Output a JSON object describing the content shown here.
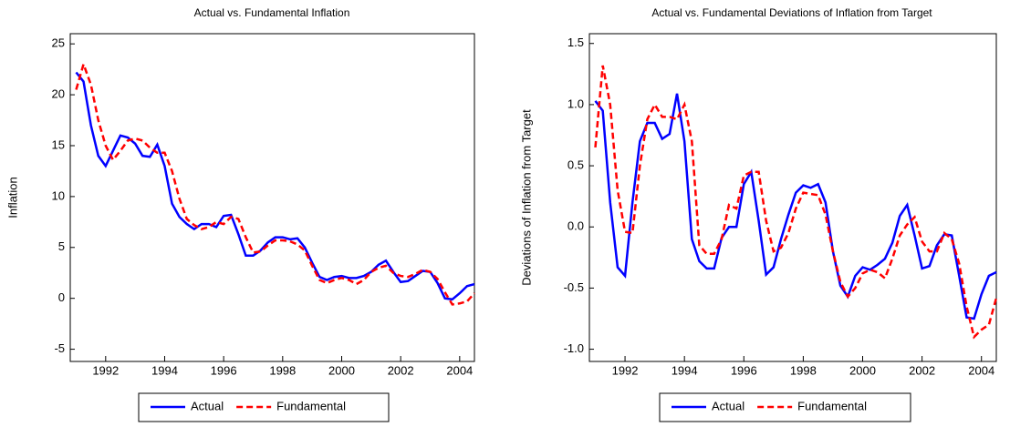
{
  "chart_data": [
    {
      "type": "line",
      "title": "Actual vs. Fundamental Inflation",
      "y_label": "Inflation",
      "x": [
        1991,
        1991.25,
        1991.5,
        1991.75,
        1992,
        1992.25,
        1992.5,
        1992.75,
        1993,
        1993.25,
        1993.5,
        1993.75,
        1994,
        1994.25,
        1994.5,
        1994.75,
        1995,
        1995.25,
        1995.5,
        1995.75,
        1996,
        1996.25,
        1996.5,
        1996.75,
        1997,
        1997.25,
        1997.5,
        1997.75,
        1998,
        1998.25,
        1998.5,
        1998.75,
        1999,
        1999.25,
        1999.5,
        1999.75,
        2000,
        2000.25,
        2000.5,
        2000.75,
        2001,
        2001.25,
        2001.5,
        2001.75,
        2002,
        2002.25,
        2002.5,
        2002.75,
        2003,
        2003.25,
        2003.5,
        2003.75,
        2004,
        2004.25,
        2004.5
      ],
      "series": [
        {
          "name": "Actual",
          "color": "#0000ff",
          "line_style": "solid",
          "values": [
            22.2,
            21.3,
            17,
            14,
            13,
            14.5,
            16,
            15.8,
            15.2,
            14,
            13.9,
            15.1,
            13,
            9.3,
            8,
            7.3,
            6.8,
            7.3,
            7.3,
            7,
            8.1,
            8.2,
            6.3,
            4.2,
            4.2,
            4.7,
            5.5,
            6,
            6,
            5.8,
            5.9,
            5,
            3.5,
            2.1,
            1.8,
            2.1,
            2.2,
            2,
            2,
            2.2,
            2.6,
            3.3,
            3.7,
            2.6,
            1.6,
            1.7,
            2.2,
            2.7,
            2.6,
            1.5,
            0,
            -0.1,
            0.5,
            1.2,
            1.4
          ]
        },
        {
          "name": "Fundamental",
          "color": "#ff0000",
          "line_style": "dashed",
          "values": [
            20.5,
            23,
            21,
            17.5,
            15,
            13.6,
            14.5,
            15.5,
            15.7,
            15.5,
            14.8,
            14.3,
            14.3,
            12.5,
            9.8,
            7.8,
            7.2,
            6.8,
            7,
            7.5,
            7.3,
            8,
            7.8,
            6,
            4.5,
            4.6,
            5.2,
            5.7,
            5.7,
            5.6,
            5.3,
            4.7,
            3.2,
            1.8,
            1.5,
            1.8,
            2,
            1.8,
            1.4,
            1.8,
            2.6,
            3,
            3.2,
            2.5,
            2.2,
            2.1,
            2.4,
            2.8,
            2.6,
            1.9,
            0.6,
            -0.6,
            -0.5,
            -0.3,
            0.5
          ]
        }
      ],
      "xlim": [
        1990.8,
        2004.5
      ],
      "xticks": [
        1992,
        1994,
        1996,
        1998,
        2000,
        2002,
        2004
      ],
      "ylim": [
        -6.2,
        26
      ],
      "yticks": [
        -5,
        0,
        5,
        10,
        15,
        20,
        25
      ]
    },
    {
      "type": "line",
      "title": "Actual vs. Fundamental Deviations of Inflation from Target",
      "y_label": "Deviations of Inflation from Target",
      "x": [
        1991,
        1991.25,
        1991.5,
        1991.75,
        1992,
        1992.25,
        1992.5,
        1992.75,
        1993,
        1993.25,
        1993.5,
        1993.75,
        1994,
        1994.25,
        1994.5,
        1994.75,
        1995,
        1995.25,
        1995.5,
        1995.75,
        1996,
        1996.25,
        1996.5,
        1996.75,
        1997,
        1997.25,
        1997.5,
        1997.75,
        1998,
        1998.25,
        1998.5,
        1998.75,
        1999,
        1999.25,
        1999.5,
        1999.75,
        2000,
        2000.25,
        2000.5,
        2000.75,
        2001,
        2001.25,
        2001.5,
        2001.75,
        2002,
        2002.25,
        2002.5,
        2002.75,
        2003,
        2003.25,
        2003.5,
        2003.75,
        2004,
        2004.25,
        2004.5
      ],
      "series": [
        {
          "name": "Actual",
          "color": "#0000ff",
          "line_style": "solid",
          "values": [
            1.03,
            0.95,
            0.2,
            -0.33,
            -0.4,
            0.2,
            0.7,
            0.85,
            0.85,
            0.72,
            0.76,
            1.09,
            0.7,
            -0.1,
            -0.28,
            -0.34,
            -0.34,
            -0.09,
            0,
            0,
            0.35,
            0.45,
            0.05,
            -0.39,
            -0.33,
            -0.1,
            0.1,
            0.28,
            0.34,
            0.32,
            0.35,
            0.2,
            -0.2,
            -0.48,
            -0.57,
            -0.4,
            -0.33,
            -0.35,
            -0.31,
            -0.26,
            -0.13,
            0.09,
            0.18,
            -0.07,
            -0.34,
            -0.32,
            -0.15,
            -0.06,
            -0.07,
            -0.4,
            -0.74,
            -0.75,
            -0.55,
            -0.4,
            -0.37
          ]
        },
        {
          "name": "Fundamental",
          "color": "#ff0000",
          "line_style": "dashed",
          "values": [
            0.65,
            1.32,
            1,
            0.3,
            -0.04,
            -0.05,
            0.5,
            0.88,
            1,
            0.9,
            0.9,
            0.88,
            1,
            0.7,
            -0.15,
            -0.22,
            -0.22,
            -0.1,
            0.18,
            0.15,
            0.42,
            0.45,
            0.45,
            0.05,
            -0.2,
            -0.17,
            -0.05,
            0.15,
            0.28,
            0.27,
            0.26,
            0.1,
            -0.2,
            -0.45,
            -0.57,
            -0.5,
            -0.38,
            -0.35,
            -0.37,
            -0.42,
            -0.26,
            -0.07,
            0.02,
            0.08,
            -0.12,
            -0.2,
            -0.2,
            -0.05,
            -0.1,
            -0.3,
            -0.65,
            -0.9,
            -0.84,
            -0.8,
            -0.58
          ]
        }
      ],
      "xlim": [
        1990.8,
        2004.5
      ],
      "xticks": [
        1992,
        1994,
        1996,
        1998,
        2000,
        2002,
        2004
      ],
      "ylim": [
        -1.1,
        1.58
      ],
      "yticks": [
        {
          "value": -1,
          "label": "-1.0"
        },
        {
          "value": -0.5,
          "label": "-0.5"
        },
        {
          "value": 0,
          "label": "0.0"
        },
        {
          "value": 0.5,
          "label": "0.5"
        },
        {
          "value": 1,
          "label": "1.0"
        },
        {
          "value": 1.5,
          "label": "1.5"
        }
      ]
    }
  ]
}
